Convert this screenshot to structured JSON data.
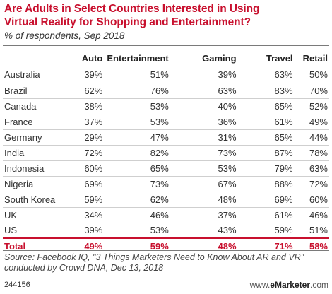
{
  "chart_data": {
    "type": "table",
    "title": "Are Adults in Select Countries Interested in Using\nVirtual Reality for Shopping and Entertainment?",
    "subtitle": "% of respondents, Sep 2018",
    "columns": [
      "",
      "Auto",
      "Entertainment",
      "Gaming",
      "Travel",
      "Retail"
    ],
    "rows": [
      {
        "label": "Australia",
        "values": [
          "39%",
          "51%",
          "39%",
          "63%",
          "50%"
        ]
      },
      {
        "label": "Brazil",
        "values": [
          "62%",
          "76%",
          "63%",
          "83%",
          "70%"
        ]
      },
      {
        "label": "Canada",
        "values": [
          "38%",
          "53%",
          "40%",
          "65%",
          "52%"
        ]
      },
      {
        "label": "France",
        "values": [
          "37%",
          "53%",
          "36%",
          "61%",
          "49%"
        ]
      },
      {
        "label": "Germany",
        "values": [
          "29%",
          "47%",
          "31%",
          "65%",
          "44%"
        ]
      },
      {
        "label": "India",
        "values": [
          "72%",
          "82%",
          "73%",
          "87%",
          "78%"
        ]
      },
      {
        "label": "Indonesia",
        "values": [
          "60%",
          "65%",
          "53%",
          "79%",
          "63%"
        ]
      },
      {
        "label": "Nigeria",
        "values": [
          "69%",
          "73%",
          "67%",
          "88%",
          "72%"
        ]
      },
      {
        "label": "South Korea",
        "values": [
          "59%",
          "62%",
          "48%",
          "69%",
          "60%"
        ]
      },
      {
        "label": "UK",
        "values": [
          "34%",
          "46%",
          "37%",
          "61%",
          "46%"
        ]
      },
      {
        "label": "US",
        "values": [
          "39%",
          "53%",
          "43%",
          "59%",
          "51%"
        ]
      }
    ],
    "total": {
      "label": "Total",
      "values": [
        "49%",
        "59%",
        "48%",
        "71%",
        "58%"
      ]
    }
  },
  "source": "Source: Facebook IQ, \"3 Things Marketers Need to Know About AR and VR\" conducted by Crowd DNA, Dec 13, 2018",
  "footer": {
    "chart_id": "244156",
    "brand_prefix": "www.",
    "brand_name": "eMarketer",
    "brand_suffix": ".com"
  },
  "colors": {
    "title": "#c8102e",
    "total": "#c8102e",
    "text": "#222222"
  }
}
